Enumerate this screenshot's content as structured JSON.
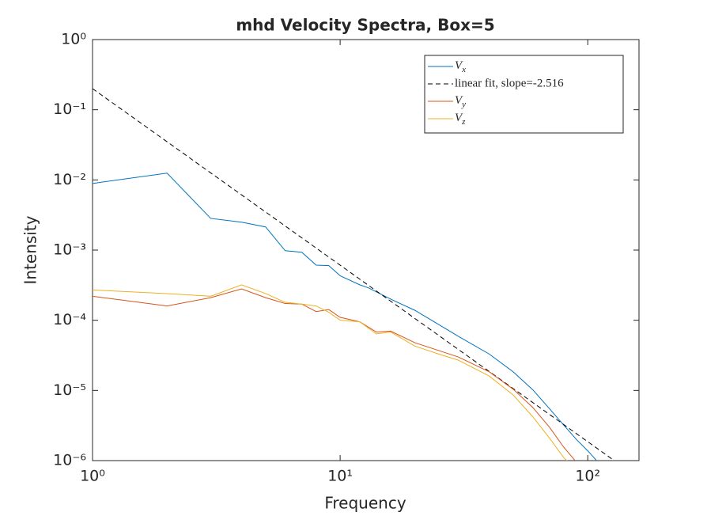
{
  "chart_data": {
    "type": "line",
    "title": "mhd Velocity Spectra, Box=5",
    "x_label": "Frequency",
    "y_label": "Intensity",
    "xscale": "log",
    "yscale": "log",
    "xlim": [
      1,
      161
    ],
    "ylim": [
      1e-06,
      1
    ],
    "xticks": [
      {
        "value": 1,
        "label": "10⁰"
      },
      {
        "value": 10,
        "label": "10¹"
      },
      {
        "value": 100,
        "label": "10²"
      }
    ],
    "yticks": [
      {
        "value": 1e-06,
        "label": "10⁻⁶"
      },
      {
        "value": 1e-05,
        "label": "10⁻⁵"
      },
      {
        "value": 0.0001,
        "label": "10⁻⁴"
      },
      {
        "value": 0.001,
        "label": "10⁻³"
      },
      {
        "value": 0.01,
        "label": "10⁻²"
      },
      {
        "value": 0.1,
        "label": "10⁻¹"
      },
      {
        "value": 1,
        "label": "10⁰"
      }
    ],
    "grid": false,
    "legend_position": "upper right",
    "series": [
      {
        "name": "V_x",
        "color": "#0072bd",
        "dash": false,
        "x": [
          1,
          2,
          3,
          4,
          5,
          6,
          7,
          8,
          9,
          10,
          12,
          13,
          16,
          20,
          25,
          30,
          40,
          50,
          60,
          70,
          80,
          90,
          100,
          110
        ],
        "values": [
          0.0089,
          0.0125,
          0.00283,
          0.0025,
          0.00214,
          0.00098,
          0.00093,
          0.00061,
          0.0006,
          0.00043,
          0.00032,
          0.00029,
          0.0002,
          0.000139,
          8.7e-05,
          5.9e-05,
          3.3e-05,
          1.84e-05,
          1.02e-05,
          5.5e-06,
          3.2e-06,
          2e-06,
          1.38e-06,
          9.5e-07
        ]
      },
      {
        "name": "linear fit, slope=-2.516",
        "color": "#000000",
        "dash": true,
        "x": [
          1,
          130
        ],
        "values": [
          0.2,
          9.6e-07
        ]
      },
      {
        "name": "V_y",
        "color": "#d95319",
        "dash": false,
        "x": [
          1,
          2,
          3,
          4,
          5,
          6,
          7,
          8,
          9,
          10,
          12,
          14,
          16,
          20,
          25,
          30,
          40,
          50,
          60,
          70,
          80,
          90
        ],
        "values": [
          0.00022,
          0.00016,
          0.00021,
          0.00028,
          0.00021,
          0.000173,
          0.00017,
          0.000133,
          0.000142,
          0.00011,
          9.5e-05,
          6.8e-05,
          7e-05,
          4.8e-05,
          3.7e-05,
          3e-05,
          1.84e-05,
          1.04e-05,
          5.7e-06,
          3e-06,
          1.55e-06,
          9.5e-07
        ]
      },
      {
        "name": "V_z",
        "color": "#edb120",
        "dash": false,
        "x": [
          1,
          2,
          3,
          4,
          5,
          6,
          7,
          8,
          9,
          10,
          12,
          14,
          16,
          20,
          25,
          30,
          40,
          50,
          60,
          70,
          80,
          85
        ],
        "values": [
          0.00027,
          0.00024,
          0.00022,
          0.00032,
          0.00024,
          0.00018,
          0.00017,
          0.00016,
          0.00013,
          0.0001,
          9.5e-05,
          6.4e-05,
          6.8e-05,
          4.3e-05,
          3.3e-05,
          2.7e-05,
          1.6e-05,
          8.6e-06,
          4.2e-06,
          2.1e-06,
          1.1e-06,
          9e-07
        ]
      }
    ]
  }
}
